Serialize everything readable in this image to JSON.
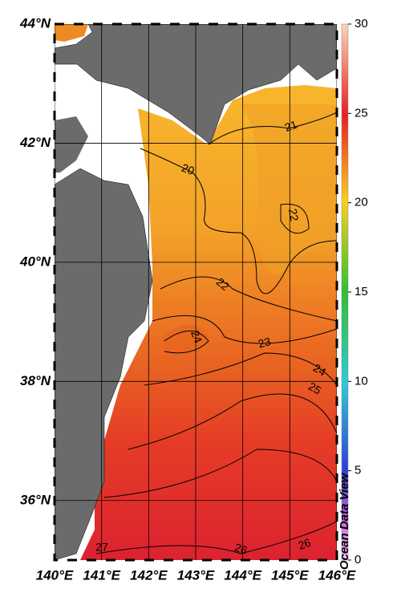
{
  "map": {
    "xlim": [
      140,
      146
    ],
    "ylim": [
      35,
      44
    ],
    "lon_ticks": [
      {
        "value": 140,
        "label": "140°E"
      },
      {
        "value": 141,
        "label": "141°E"
      },
      {
        "value": 142,
        "label": "142°E"
      },
      {
        "value": 143,
        "label": "143°E"
      },
      {
        "value": 144,
        "label": "144°E"
      },
      {
        "value": 145,
        "label": "145°E"
      },
      {
        "value": 146,
        "label": "146°E"
      }
    ],
    "lat_ticks": [
      {
        "value": 36,
        "label": "36°N"
      },
      {
        "value": 38,
        "label": "38°N"
      },
      {
        "value": 40,
        "label": "40°N"
      },
      {
        "value": 42,
        "label": "42°N"
      },
      {
        "value": 44,
        "label": "44°N"
      }
    ],
    "colorbar": {
      "lim": [
        0,
        30
      ],
      "ticks": [
        0,
        5,
        10,
        15,
        20,
        25,
        30
      ]
    },
    "contour_labels": [
      21,
      20,
      22,
      22,
      24,
      23,
      24,
      25,
      27,
      26,
      26
    ],
    "watermark": "Ocean Data View"
  }
}
